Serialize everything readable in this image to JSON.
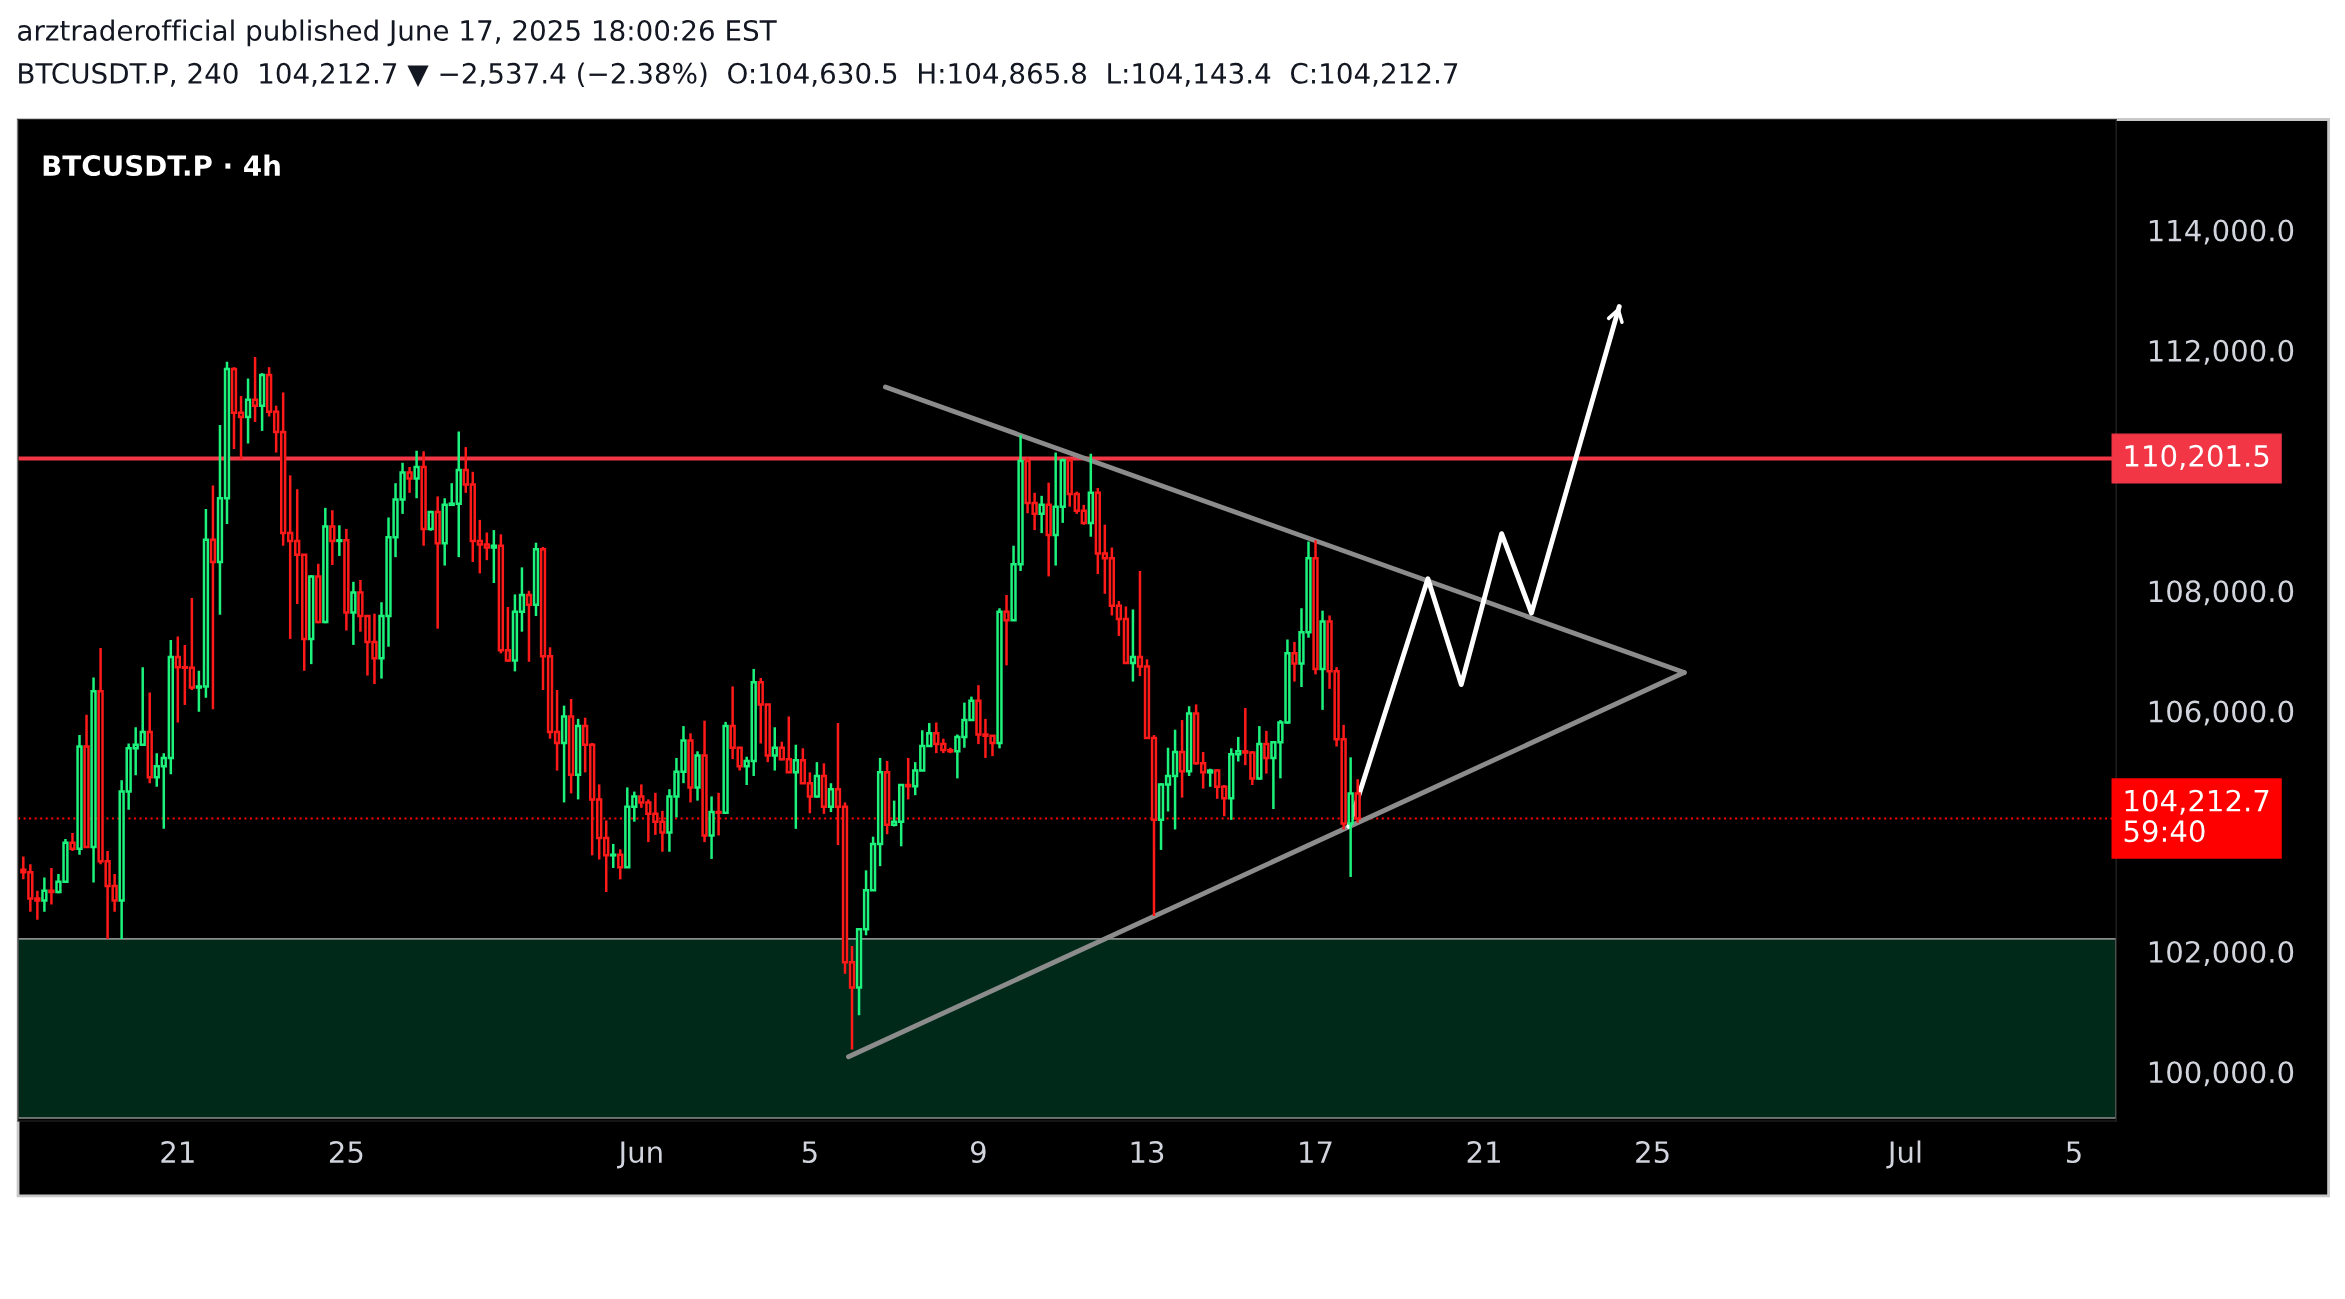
{
  "chart_data": {
    "type": "candlestick",
    "title": "arztraderofficial published June 17, 2025 18:00:26 EST",
    "subtitle": "BTCUSDT.P, 240  104,212.7 ▼ −2,537.4 (−2.38%)  O:104,630.5  H:104,865.8  L:104,143.4  C:104,212.7",
    "annotations": [
      "BTCUSDT.P · 4h"
    ],
    "xlim": [
      "2025-05-17T05:00",
      "2025-07-06T00:00"
    ],
    "xticks": [
      {
        "value": "2025-05-21",
        "label": "21"
      },
      {
        "value": "2025-05-25",
        "label": "25"
      },
      {
        "value": "2025-06-01",
        "label": "Jun"
      },
      {
        "value": "2025-06-05",
        "label": "5"
      },
      {
        "value": "2025-06-09",
        "label": "9"
      },
      {
        "value": "2025-06-13",
        "label": "13"
      },
      {
        "value": "2025-06-17",
        "label": "17"
      },
      {
        "value": "2025-06-21",
        "label": "21"
      },
      {
        "value": "2025-06-25",
        "label": "25"
      },
      {
        "value": "2025-07-01",
        "label": "Jul"
      },
      {
        "value": "2025-07-05",
        "label": "5"
      }
    ],
    "ylim": [
      99180,
      115840
    ],
    "yticks": [
      {
        "value": 100000,
        "label": "100,000.0"
      },
      {
        "value": 102000,
        "label": "102,000.0"
      },
      {
        "value": 106000,
        "label": "106,000.0"
      },
      {
        "value": 108000,
        "label": "108,000.0"
      },
      {
        "value": 112000,
        "label": "112,000.0"
      },
      {
        "value": 114000,
        "label": "114,000.0"
      }
    ],
    "ref_lines": [
      {
        "axis": "y",
        "value": 110201.5,
        "label": "110,201.5",
        "color": "#f23645",
        "line_style": "solid"
      },
      {
        "axis": "y",
        "value": 104212.7,
        "label": "104,212.7\n59:40",
        "color": "#ff0000",
        "line_style": "dotted"
      }
    ],
    "bands": [
      {
        "axis": "y",
        "from": 99230,
        "to": 102210,
        "color": "#00291a"
      }
    ],
    "x": [
      "2025-05-17T08:00",
      "2025-05-17T12:00",
      "2025-05-17T16:00",
      "2025-05-17T20:00",
      "2025-05-18T00:00",
      "2025-05-18T04:00",
      "2025-05-18T08:00",
      "2025-05-18T12:00",
      "2025-05-18T16:00",
      "2025-05-18T20:00",
      "2025-05-19T00:00",
      "2025-05-19T04:00",
      "2025-05-19T08:00",
      "2025-05-19T12:00",
      "2025-05-19T16:00",
      "2025-05-19T20:00",
      "2025-05-20T00:00",
      "2025-05-20T04:00",
      "2025-05-20T08:00",
      "2025-05-20T12:00",
      "2025-05-20T16:00",
      "2025-05-20T20:00",
      "2025-05-21T00:00",
      "2025-05-21T04:00",
      "2025-05-21T08:00",
      "2025-05-21T12:00",
      "2025-05-21T16:00",
      "2025-05-21T20:00",
      "2025-05-22T00:00",
      "2025-05-22T04:00",
      "2025-05-22T08:00",
      "2025-05-22T12:00",
      "2025-05-22T16:00",
      "2025-05-22T20:00",
      "2025-05-23T00:00",
      "2025-05-23T04:00",
      "2025-05-23T08:00",
      "2025-05-23T12:00",
      "2025-05-23T16:00",
      "2025-05-23T20:00",
      "2025-05-24T00:00",
      "2025-05-24T04:00",
      "2025-05-24T08:00",
      "2025-05-24T12:00",
      "2025-05-24T16:00",
      "2025-05-24T20:00",
      "2025-05-25T00:00",
      "2025-05-25T04:00",
      "2025-05-25T08:00",
      "2025-05-25T12:00",
      "2025-05-25T16:00",
      "2025-05-25T20:00",
      "2025-05-26T00:00",
      "2025-05-26T04:00",
      "2025-05-26T08:00",
      "2025-05-26T12:00",
      "2025-05-26T16:00",
      "2025-05-26T20:00",
      "2025-05-27T00:00",
      "2025-05-27T04:00",
      "2025-05-27T08:00",
      "2025-05-27T12:00",
      "2025-05-27T16:00",
      "2025-05-27T20:00",
      "2025-05-28T00:00",
      "2025-05-28T04:00",
      "2025-05-28T08:00",
      "2025-05-28T12:00",
      "2025-05-28T16:00",
      "2025-05-28T20:00",
      "2025-05-29T00:00",
      "2025-05-29T04:00",
      "2025-05-29T08:00",
      "2025-05-29T12:00",
      "2025-05-29T16:00",
      "2025-05-29T20:00",
      "2025-05-30T00:00",
      "2025-05-30T04:00",
      "2025-05-30T08:00",
      "2025-05-30T12:00",
      "2025-05-30T16:00",
      "2025-05-30T20:00",
      "2025-05-31T00:00",
      "2025-05-31T04:00",
      "2025-05-31T08:00",
      "2025-05-31T12:00",
      "2025-05-31T16:00",
      "2025-05-31T20:00",
      "2025-06-01T00:00",
      "2025-06-01T04:00",
      "2025-06-01T08:00",
      "2025-06-01T12:00",
      "2025-06-01T16:00",
      "2025-06-01T20:00",
      "2025-06-02T00:00",
      "2025-06-02T04:00",
      "2025-06-02T08:00",
      "2025-06-02T12:00",
      "2025-06-02T16:00",
      "2025-06-02T20:00",
      "2025-06-03T00:00",
      "2025-06-03T04:00",
      "2025-06-03T08:00",
      "2025-06-03T12:00",
      "2025-06-03T16:00",
      "2025-06-03T20:00",
      "2025-06-04T00:00",
      "2025-06-04T04:00",
      "2025-06-04T08:00",
      "2025-06-04T12:00",
      "2025-06-04T16:00",
      "2025-06-04T20:00",
      "2025-06-05T00:00",
      "2025-06-05T04:00",
      "2025-06-05T08:00",
      "2025-06-05T12:00",
      "2025-06-05T16:00",
      "2025-06-05T20:00",
      "2025-06-06T00:00",
      "2025-06-06T04:00",
      "2025-06-06T08:00",
      "2025-06-06T12:00",
      "2025-06-06T16:00",
      "2025-06-06T20:00",
      "2025-06-07T00:00",
      "2025-06-07T04:00",
      "2025-06-07T08:00",
      "2025-06-07T12:00",
      "2025-06-07T16:00",
      "2025-06-07T20:00",
      "2025-06-08T00:00",
      "2025-06-08T04:00",
      "2025-06-08T08:00",
      "2025-06-08T12:00",
      "2025-06-08T16:00",
      "2025-06-08T20:00",
      "2025-06-09T00:00",
      "2025-06-09T04:00",
      "2025-06-09T08:00",
      "2025-06-09T12:00",
      "2025-06-09T16:00",
      "2025-06-09T20:00",
      "2025-06-10T00:00",
      "2025-06-10T04:00",
      "2025-06-10T08:00",
      "2025-06-10T12:00",
      "2025-06-10T16:00",
      "2025-06-10T20:00",
      "2025-06-11T00:00",
      "2025-06-11T04:00",
      "2025-06-11T08:00",
      "2025-06-11T12:00",
      "2025-06-11T16:00",
      "2025-06-11T20:00",
      "2025-06-12T00:00",
      "2025-06-12T04:00",
      "2025-06-12T08:00",
      "2025-06-12T12:00",
      "2025-06-12T16:00",
      "2025-06-12T20:00",
      "2025-06-13T00:00",
      "2025-06-13T04:00",
      "2025-06-13T08:00",
      "2025-06-13T12:00",
      "2025-06-13T16:00",
      "2025-06-13T20:00",
      "2025-06-14T00:00",
      "2025-06-14T04:00",
      "2025-06-14T08:00",
      "2025-06-14T12:00",
      "2025-06-14T16:00",
      "2025-06-14T20:00",
      "2025-06-15T00:00",
      "2025-06-15T04:00",
      "2025-06-15T08:00",
      "2025-06-15T12:00",
      "2025-06-15T16:00",
      "2025-06-15T20:00",
      "2025-06-16T00:00",
      "2025-06-16T04:00",
      "2025-06-16T08:00",
      "2025-06-16T12:00",
      "2025-06-16T16:00",
      "2025-06-16T20:00",
      "2025-06-17T00:00",
      "2025-06-17T04:00",
      "2025-06-17T08:00",
      "2025-06-17T12:00",
      "2025-06-17T16:00",
      "2025-06-17T20:00",
      "2025-06-18T00:00"
    ],
    "ohlc": [
      [
        103360,
        103580,
        103200,
        103320
      ],
      [
        103320,
        103450,
        102660,
        102880
      ],
      [
        102880,
        103010,
        102530,
        102850
      ],
      [
        102850,
        103230,
        102660,
        103010
      ],
      [
        103010,
        103390,
        102780,
        102990
      ],
      [
        102990,
        103290,
        102970,
        103160
      ],
      [
        103160,
        103870,
        103150,
        103810
      ],
      [
        103810,
        103970,
        103670,
        103710
      ],
      [
        103710,
        105600,
        103610,
        105410
      ],
      [
        105410,
        105940,
        103720,
        103740
      ],
      [
        103740,
        106560,
        103150,
        106330
      ],
      [
        106330,
        107050,
        103450,
        103500
      ],
      [
        103500,
        103670,
        102210,
        103090
      ],
      [
        103090,
        103290,
        102660,
        102850
      ],
      [
        102850,
        104850,
        102210,
        104660
      ],
      [
        104660,
        105460,
        104360,
        105380
      ],
      [
        105380,
        105730,
        104930,
        105440
      ],
      [
        105440,
        106730,
        105430,
        105650
      ],
      [
        105650,
        106310,
        104800,
        104900
      ],
      [
        104900,
        105300,
        104740,
        105080
      ],
      [
        105080,
        105300,
        104040,
        105220
      ],
      [
        105220,
        107180,
        104950,
        106900
      ],
      [
        106900,
        107240,
        105810,
        106730
      ],
      [
        106730,
        107100,
        106100,
        106720
      ],
      [
        106720,
        107880,
        106350,
        106390
      ],
      [
        106390,
        106670,
        105990,
        106410
      ],
      [
        106410,
        109360,
        106220,
        108850
      ],
      [
        108850,
        109750,
        106030,
        108480
      ],
      [
        108480,
        110760,
        107600,
        109540
      ],
      [
        109540,
        111810,
        109110,
        111690
      ],
      [
        111690,
        111720,
        110360,
        110960
      ],
      [
        110960,
        111240,
        110190,
        110890
      ],
      [
        110890,
        111530,
        110450,
        111180
      ],
      [
        111180,
        111890,
        110810,
        111080
      ],
      [
        111080,
        111620,
        110660,
        111590
      ],
      [
        111590,
        111720,
        110900,
        110980
      ],
      [
        110980,
        111080,
        110300,
        110640
      ],
      [
        110640,
        111300,
        108750,
        108960
      ],
      [
        108960,
        109920,
        107200,
        108830
      ],
      [
        108830,
        109690,
        107780,
        108600
      ],
      [
        108600,
        108610,
        106670,
        107200
      ],
      [
        107200,
        108260,
        106780,
        108240
      ],
      [
        108240,
        108450,
        107460,
        107480
      ],
      [
        107480,
        109380,
        107460,
        109070
      ],
      [
        109070,
        109340,
        108430,
        108830
      ],
      [
        108830,
        109090,
        108580,
        108840
      ],
      [
        108840,
        109030,
        107340,
        107640
      ],
      [
        107640,
        108150,
        107100,
        107970
      ],
      [
        107970,
        108180,
        107320,
        107580
      ],
      [
        107580,
        107580,
        106590,
        107150
      ],
      [
        107150,
        107620,
        106450,
        106880
      ],
      [
        106880,
        107810,
        106540,
        107580
      ],
      [
        107580,
        109220,
        107070,
        108890
      ],
      [
        108890,
        109790,
        108560,
        109520
      ],
      [
        109520,
        110130,
        109280,
        109970
      ],
      [
        109970,
        110060,
        109630,
        109870
      ],
      [
        109870,
        110330,
        109540,
        110060
      ],
      [
        110060,
        110320,
        108750,
        109030
      ],
      [
        109030,
        109330,
        109000,
        109310
      ],
      [
        109310,
        109570,
        107370,
        108790
      ],
      [
        108790,
        109540,
        108420,
        109430
      ],
      [
        109430,
        109790,
        109420,
        109450
      ],
      [
        109450,
        110650,
        108560,
        110010
      ],
      [
        110010,
        110390,
        109630,
        109770
      ],
      [
        109770,
        109980,
        108480,
        108830
      ],
      [
        108830,
        109180,
        108290,
        108770
      ],
      [
        108770,
        108970,
        108510,
        108720
      ],
      [
        108720,
        109010,
        108130,
        108750
      ],
      [
        108750,
        108940,
        106960,
        107010
      ],
      [
        107010,
        107730,
        106820,
        106840
      ],
      [
        106840,
        107940,
        106660,
        107650
      ],
      [
        107650,
        108390,
        107320,
        107930
      ],
      [
        107930,
        108000,
        106820,
        107770
      ],
      [
        107770,
        108800,
        107580,
        108690
      ],
      [
        108690,
        108730,
        106350,
        106910
      ],
      [
        106910,
        107060,
        105540,
        105650
      ],
      [
        105650,
        106350,
        105010,
        105470
      ],
      [
        105470,
        106090,
        104480,
        105910
      ],
      [
        105910,
        106200,
        104630,
        104940
      ],
      [
        104940,
        105870,
        104530,
        105750
      ],
      [
        105750,
        105890,
        104980,
        105440
      ],
      [
        105440,
        105470,
        103600,
        104530
      ],
      [
        104530,
        104780,
        103530,
        103890
      ],
      [
        103890,
        104180,
        102990,
        103600
      ],
      [
        103600,
        103790,
        103390,
        103610
      ],
      [
        103610,
        103700,
        103200,
        103400
      ],
      [
        103400,
        104730,
        103390,
        104410
      ],
      [
        104410,
        104660,
        104160,
        104580
      ],
      [
        104580,
        104780,
        104390,
        104480
      ],
      [
        104480,
        104530,
        103820,
        104290
      ],
      [
        104290,
        104640,
        103940,
        104160
      ],
      [
        104160,
        104340,
        103660,
        103980
      ],
      [
        103980,
        104700,
        103660,
        104580
      ],
      [
        104580,
        105220,
        104230,
        104990
      ],
      [
        104990,
        105750,
        104800,
        105510
      ],
      [
        105510,
        105630,
        104480,
        104730
      ],
      [
        104730,
        105330,
        104510,
        105260
      ],
      [
        105260,
        105840,
        103820,
        103930
      ],
      [
        103930,
        104580,
        103540,
        104320
      ],
      [
        104320,
        104640,
        103930,
        104310
      ],
      [
        104310,
        105820,
        104300,
        105750
      ],
      [
        105750,
        106410,
        105200,
        105390
      ],
      [
        105390,
        105400,
        105010,
        105080
      ],
      [
        105080,
        105240,
        104770,
        105170
      ],
      [
        105170,
        106700,
        104920,
        106480
      ],
      [
        106480,
        106550,
        105460,
        106110
      ],
      [
        106110,
        106110,
        105150,
        105260
      ],
      [
        105260,
        105730,
        105010,
        105390
      ],
      [
        105390,
        105490,
        105180,
        105200
      ],
      [
        105200,
        105910,
        104970,
        104980
      ],
      [
        104980,
        105440,
        104040,
        105180
      ],
      [
        105180,
        105380,
        104790,
        104800
      ],
      [
        104800,
        104980,
        104300,
        104580
      ],
      [
        104580,
        105150,
        104560,
        104920
      ],
      [
        104920,
        105130,
        104290,
        104410
      ],
      [
        104410,
        104800,
        104320,
        104700
      ],
      [
        104700,
        105800,
        103770,
        104410
      ],
      [
        104410,
        104480,
        101630,
        101820
      ],
      [
        101820,
        102090,
        100370,
        101400
      ],
      [
        101400,
        102390,
        100940,
        102370
      ],
      [
        102370,
        103350,
        102270,
        103020
      ],
      [
        103020,
        103910,
        103010,
        103790
      ],
      [
        103790,
        105220,
        103420,
        104980
      ],
      [
        104980,
        105170,
        103950,
        104110
      ],
      [
        104110,
        104510,
        104080,
        104160
      ],
      [
        104160,
        104780,
        103750,
        104770
      ],
      [
        104770,
        105220,
        104530,
        104750
      ],
      [
        104750,
        105150,
        104600,
        105010
      ],
      [
        105010,
        105680,
        105000,
        105420
      ],
      [
        105420,
        105800,
        105410,
        105630
      ],
      [
        105630,
        105810,
        105300,
        105450
      ],
      [
        105450,
        105540,
        105300,
        105350
      ],
      [
        105350,
        105390,
        105300,
        105330
      ],
      [
        105330,
        105610,
        104880,
        105570
      ],
      [
        105570,
        106140,
        105390,
        105850
      ],
      [
        105850,
        106240,
        105840,
        106170
      ],
      [
        106170,
        106430,
        105450,
        105610
      ],
      [
        105610,
        105870,
        105220,
        105590
      ],
      [
        105590,
        105600,
        105250,
        105470
      ],
      [
        105470,
        107710,
        105380,
        107650
      ],
      [
        107650,
        107930,
        106760,
        107510
      ],
      [
        107510,
        108750,
        107500,
        108440
      ],
      [
        108440,
        110590,
        108330,
        110160
      ],
      [
        110160,
        110220,
        109290,
        109460
      ],
      [
        109460,
        109630,
        109010,
        109280
      ],
      [
        109280,
        109580,
        108960,
        109430
      ],
      [
        109430,
        109800,
        108240,
        108930
      ],
      [
        108930,
        110300,
        108420,
        109400
      ],
      [
        109400,
        110200,
        109130,
        110170
      ],
      [
        110170,
        110200,
        109400,
        109610
      ],
      [
        109610,
        109650,
        109280,
        109330
      ],
      [
        109330,
        109430,
        109100,
        109130
      ],
      [
        109130,
        110280,
        108900,
        109630
      ],
      [
        109630,
        109710,
        108280,
        108620
      ],
      [
        108620,
        109100,
        107950,
        108540
      ],
      [
        108540,
        108720,
        107590,
        107750
      ],
      [
        107750,
        107830,
        107250,
        107530
      ],
      [
        107530,
        107740,
        106790,
        106800
      ],
      [
        106800,
        107690,
        106490,
        106900
      ],
      [
        106900,
        108330,
        106580,
        106740
      ],
      [
        106740,
        106860,
        105540,
        105550
      ],
      [
        105550,
        105600,
        102590,
        104190
      ],
      [
        104190,
        104800,
        103690,
        104780
      ],
      [
        104780,
        105390,
        104330,
        104920
      ],
      [
        104920,
        105690,
        104030,
        105320
      ],
      [
        105320,
        105850,
        104560,
        105000
      ],
      [
        105000,
        106080,
        104920,
        105960
      ],
      [
        105960,
        106110,
        105110,
        105130
      ],
      [
        105130,
        105320,
        104710,
        104980
      ],
      [
        104980,
        105040,
        104740,
        105010
      ],
      [
        105010,
        105030,
        104540,
        104740
      ],
      [
        104740,
        104770,
        104250,
        104550
      ],
      [
        104550,
        105380,
        104190,
        105280
      ],
      [
        105280,
        105570,
        105160,
        105330
      ],
      [
        105330,
        106050,
        105100,
        105310
      ],
      [
        105310,
        105330,
        104770,
        104880
      ],
      [
        104880,
        105750,
        104860,
        105450
      ],
      [
        105450,
        105670,
        104960,
        105220
      ],
      [
        105220,
        105490,
        104370,
        105480
      ],
      [
        105480,
        105850,
        104880,
        105810
      ],
      [
        105810,
        107190,
        105790,
        106960
      ],
      [
        106960,
        107150,
        106490,
        106790
      ],
      [
        106790,
        107710,
        106400,
        107310
      ],
      [
        107310,
        108820,
        107220,
        108540
      ],
      [
        108540,
        108840,
        106610,
        106700
      ],
      [
        106700,
        107670,
        106020,
        107490
      ],
      [
        107490,
        107590,
        106370,
        106660
      ],
      [
        106660,
        106730,
        105410,
        105530
      ],
      [
        105530,
        105770,
        104030,
        104130
      ],
      [
        104130,
        105230,
        103240,
        104630
      ],
      [
        104630.5,
        104865.8,
        104143.4,
        104212.7
      ]
    ],
    "series": [
      {
        "type": "line",
        "color": "#8c8c8c",
        "x": [
          "2025-06-06T19:00",
          "2025-06-25T18:00"
        ],
        "values": [
          111390,
          106640
        ]
      },
      {
        "type": "line",
        "color": "#8c8c8c",
        "x": [
          "2025-06-05T22:00",
          "2025-06-25T18:00"
        ],
        "values": [
          100250,
          106640
        ]
      },
      {
        "type": "line",
        "color": "#ffffff",
        "x": [
          "2025-06-17T19:00",
          "2025-06-19T16:00",
          "2025-06-20T11:00",
          "2025-06-21T10:00",
          "2025-06-22T03:00",
          "2025-06-24T05:00"
        ],
        "values": [
          104080,
          108200,
          106440,
          108950,
          107630,
          112730
        ]
      }
    ]
  }
}
